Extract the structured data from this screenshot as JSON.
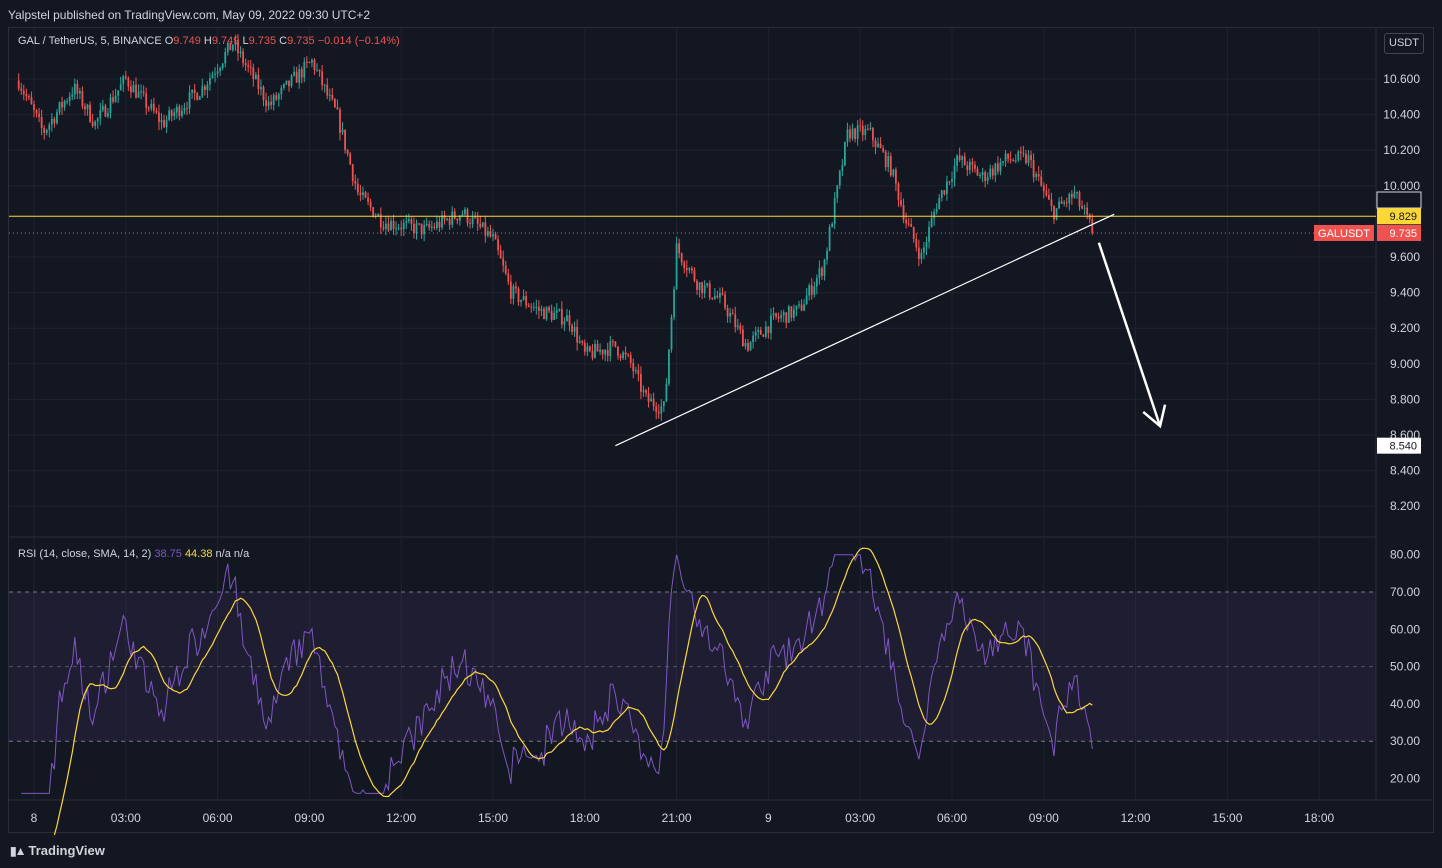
{
  "header": {
    "publisher": "Yalpstel published on TradingView.com, May 09, 2022 09:30 UTC+2"
  },
  "legend": {
    "symbol": "GAL / TetherUS, 5, BINANCE",
    "o_label": "O",
    "o_value": "9.749",
    "h_label": "H",
    "h_value": "9.749",
    "l_label": "L",
    "l_value": "9.735",
    "c_label": "C",
    "c_value": "9.735",
    "change": "−0.014 (−0.14%)"
  },
  "rsi_legend": {
    "label": "RSI (14, close, SMA, 14, 2)",
    "rsi_value": "38.75",
    "ma_value": "44.38",
    "extra1": "n/a",
    "extra2": "n/a"
  },
  "axis": {
    "currency": "USDT"
  },
  "footer": {
    "brand": "TradingView"
  },
  "colors": {
    "up": "#26a69a",
    "down": "#ef5350",
    "level": "#fdd835",
    "rsi": "#7e57c2",
    "rsi_ma": "#fdd835",
    "trend": "#ffffff"
  },
  "chart_data": [
    {
      "type": "candlestick",
      "title": "",
      "xlabel": "",
      "ylabel": "",
      "ylim": [
        8.1,
        10.85
      ],
      "y_ticks": [
        "10.600",
        "10.400",
        "10.200",
        "10.000",
        "9.600",
        "9.400",
        "9.200",
        "9.000",
        "8.800",
        "8.600",
        "8.400",
        "8.200"
      ],
      "x_ticks": [
        "8",
        "03:00",
        "06:00",
        "09:00",
        "12:00",
        "15:00",
        "18:00",
        "21:00",
        "9",
        "03:00",
        "06:00",
        "09:00",
        "12:00",
        "15:00",
        "18:00"
      ],
      "x_tick_hours": [
        0,
        3,
        6,
        9,
        12,
        15,
        18,
        21,
        24,
        27,
        30,
        33,
        36,
        39,
        42
      ],
      "price_path": [
        {
          "h": -0.8,
          "p": 10.7
        },
        {
          "h": 0.3,
          "p": 10.3
        },
        {
          "h": 1.3,
          "p": 10.55
        },
        {
          "h": 2.0,
          "p": 10.35
        },
        {
          "h": 3.0,
          "p": 10.6
        },
        {
          "h": 4.2,
          "p": 10.35
        },
        {
          "h": 5.5,
          "p": 10.55
        },
        {
          "h": 6.5,
          "p": 10.8
        },
        {
          "h": 7.7,
          "p": 10.45
        },
        {
          "h": 8.5,
          "p": 10.6
        },
        {
          "h": 9.1,
          "p": 10.7
        },
        {
          "h": 9.6,
          "p": 10.5
        },
        {
          "h": 9.9,
          "p": 10.4
        },
        {
          "h": 10.6,
          "p": 9.95
        },
        {
          "h": 11.4,
          "p": 9.8
        },
        {
          "h": 12.8,
          "p": 9.75
        },
        {
          "h": 14.0,
          "p": 9.85
        },
        {
          "h": 15.0,
          "p": 9.7
        },
        {
          "h": 15.6,
          "p": 9.4
        },
        {
          "h": 16.5,
          "p": 9.3
        },
        {
          "h": 17.5,
          "p": 9.25
        },
        {
          "h": 18.0,
          "p": 9.05
        },
        {
          "h": 19.0,
          "p": 9.1
        },
        {
          "h": 19.5,
          "p": 9.0
        },
        {
          "h": 20.0,
          "p": 8.8
        },
        {
          "h": 20.6,
          "p": 8.75
        },
        {
          "h": 21.0,
          "p": 9.65
        },
        {
          "h": 21.7,
          "p": 9.45
        },
        {
          "h": 22.5,
          "p": 9.35
        },
        {
          "h": 23.3,
          "p": 9.1
        },
        {
          "h": 24.2,
          "p": 9.25
        },
        {
          "h": 25.0,
          "p": 9.3
        },
        {
          "h": 25.8,
          "p": 9.55
        },
        {
          "h": 26.6,
          "p": 10.3
        },
        {
          "h": 27.3,
          "p": 10.3
        },
        {
          "h": 28.0,
          "p": 10.1
        },
        {
          "h": 28.5,
          "p": 9.8
        },
        {
          "h": 29.0,
          "p": 9.6
        },
        {
          "h": 29.5,
          "p": 9.9
        },
        {
          "h": 30.2,
          "p": 10.15
        },
        {
          "h": 31.0,
          "p": 10.05
        },
        {
          "h": 31.8,
          "p": 10.15
        },
        {
          "h": 32.5,
          "p": 10.15
        },
        {
          "h": 33.3,
          "p": 9.85
        },
        {
          "h": 34.0,
          "p": 9.95
        },
        {
          "h": 34.4,
          "p": 9.82
        },
        {
          "h": 34.6,
          "p": 9.735
        }
      ],
      "rsi_ylim": [
        14,
        82
      ],
      "rsi_ticks": [
        "80.00",
        "70.00",
        "60.00",
        "50.00",
        "40.00",
        "30.00",
        "20.00"
      ],
      "rsi_band": [
        30,
        70
      ],
      "rsi_mid": 50,
      "levels": {
        "resistance": "9.829",
        "last_price": "9.735",
        "upper_mark": "9.857",
        "target": "8.540",
        "symbol_tag": "GALUSDT"
      },
      "trendline": [
        {
          "h": 19.0,
          "p": 8.54
        },
        {
          "h": 35.3,
          "p": 9.84
        }
      ],
      "projection_arrow": [
        {
          "h": 34.8,
          "p": 9.68
        },
        {
          "h": 36.8,
          "p": 8.65
        }
      ]
    }
  ]
}
